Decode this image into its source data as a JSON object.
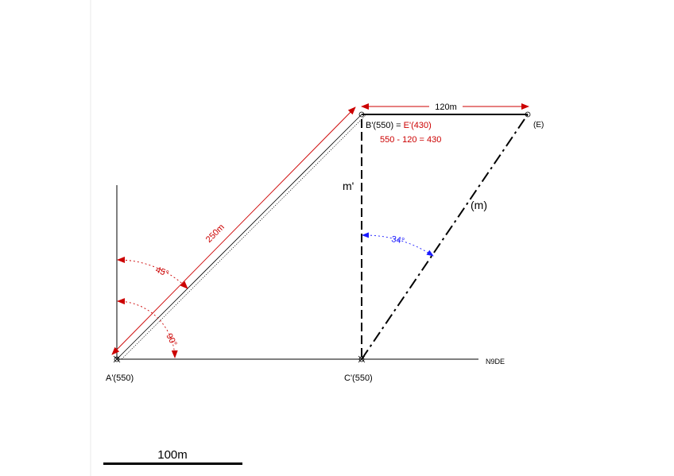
{
  "labels": {
    "a_point": "A'(550)",
    "c_point": "C'(550)",
    "b_point_prefix": "B'(550) = ",
    "b_point_suffix": "E'(430)",
    "calc": "550 - 120 = 430",
    "e_point": "(E)",
    "m_prime": "m'",
    "m": "(m)",
    "n90e": "N9DE",
    "dim_120": "120m",
    "dim_250": "250m",
    "angle_45": "45°",
    "angle_90": "90°",
    "angle_34": "34°",
    "scale": "100m"
  },
  "colors": {
    "black": "#000000",
    "red": "#cc0000",
    "blue": "#1a1aff"
  }
}
